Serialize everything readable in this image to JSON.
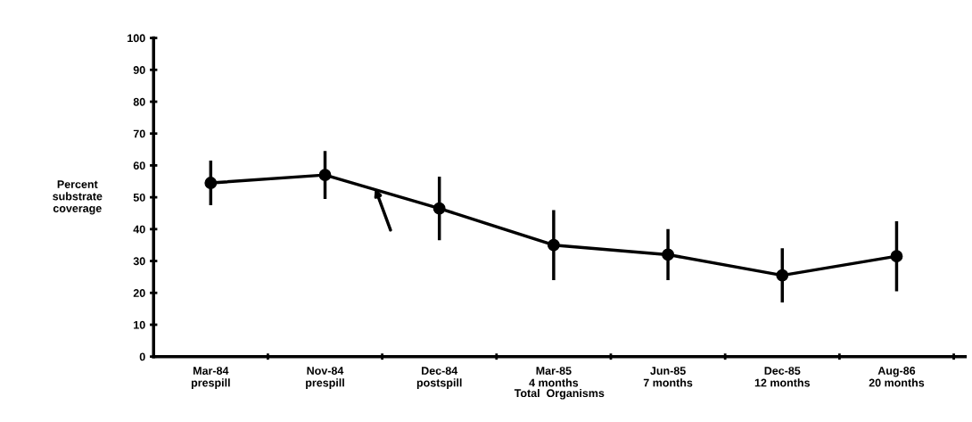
{
  "chart_data": {
    "type": "line",
    "categories": [
      "Mar-84\nprespill",
      "Nov-84\nprespill",
      "Dec-84\npostspill",
      "Mar-85\n4 months",
      "Jun-85\n7 months",
      "Dec-85\n12 months",
      "Aug-86\n20 months"
    ],
    "series": [
      {
        "color": "#000000",
        "values": [
          54.5,
          57,
          46.5,
          35,
          32,
          25.5,
          31.5
        ],
        "errors": [
          7,
          7.5,
          10,
          11,
          8,
          8.5,
          11
        ]
      }
    ],
    "xlabel": "Total  Organisms",
    "ylabel": "Percent\nsubstrate\ncoverage",
    "ylim": [
      0,
      100
    ],
    "yticks": [
      0,
      10,
      20,
      30,
      40,
      50,
      60,
      70,
      80,
      90,
      100
    ],
    "grid": false,
    "legend": false,
    "marker": "circle",
    "line_style": "solid"
  }
}
